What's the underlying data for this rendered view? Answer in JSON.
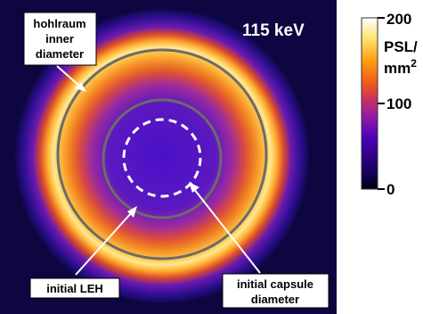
{
  "image": {
    "energy_label": "115 keV",
    "annotations": {
      "hohlraum": [
        "hohlraum",
        "inner",
        "diameter"
      ],
      "leh": "initial LEH",
      "capsule": [
        "initial capsule",
        "diameter"
      ]
    }
  },
  "colorbar": {
    "unit_line1": "PSL/",
    "unit_line2": "mm",
    "unit_sup": "2",
    "ticks": [
      "200",
      "100",
      "0"
    ],
    "tick_values": [
      200,
      100,
      0
    ],
    "colormap": [
      "#000012",
      "#16005c",
      "#4e00b8",
      "#8f1aa8",
      "#c83060",
      "#ef5a1a",
      "#ff9e10",
      "#ffe270",
      "#ffffff"
    ]
  },
  "colors": {
    "ring_overlay": "#6b6b6b",
    "capsule_dash": "#ffffff",
    "background": "#0d0640"
  }
}
